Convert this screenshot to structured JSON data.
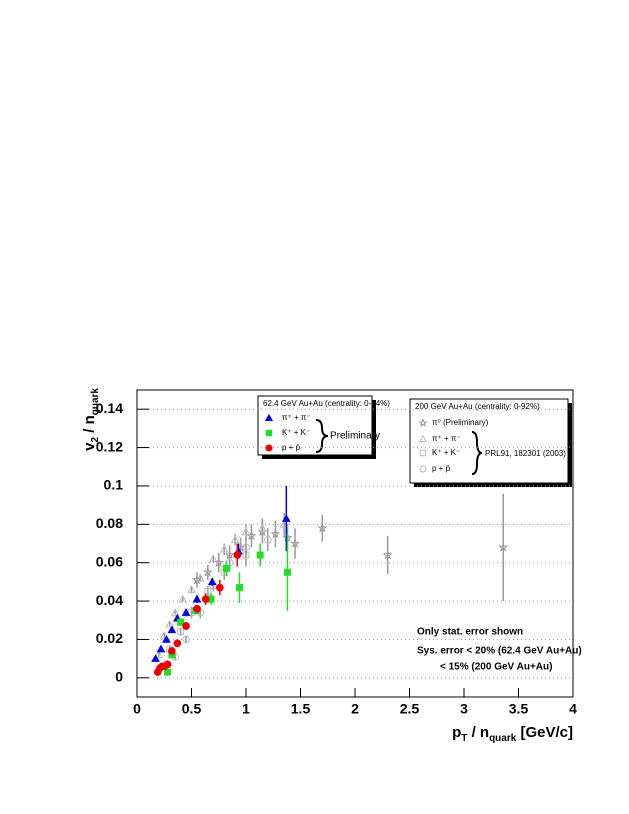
{
  "chart_data": {
    "type": "scatter",
    "xlim": [
      0,
      4
    ],
    "ylim": [
      -0.01,
      0.15
    ],
    "xticks": [
      0,
      0.5,
      1,
      1.5,
      2,
      2.5,
      3,
      3.5,
      4
    ],
    "yticks": [
      0,
      0.02,
      0.04,
      0.06,
      0.08,
      0.1,
      0.12,
      0.14
    ],
    "grid": true,
    "x_label": [
      "p",
      "T",
      " / n",
      "quark",
      " [GeV/c]"
    ],
    "y_label": [
      "v",
      "2",
      " / n",
      "quark"
    ],
    "annotations": [
      "Only stat. error shown",
      "Sys. error < 20% (62.4 GeV Au+Au)",
      "< 15% (200 GeV Au+Au)"
    ],
    "groups": [
      {
        "title": "62.4 GeV Au+Au (centrality: 0-84%)",
        "label": "Preliminary",
        "series": [
          {
            "name": "π⁺ + π⁻",
            "marker": "triangle",
            "filled": true,
            "color": "#0000ee",
            "x": [
              0.17,
              0.22,
              0.27,
              0.32,
              0.37,
              0.45,
              0.55,
              0.69,
              0.93,
              1.37
            ],
            "values": [
              0.01,
              0.015,
              0.02,
              0.025,
              0.031,
              0.034,
              0.041,
              0.05,
              0.066,
              0.083
            ],
            "errors": [
              0.001,
              0.001,
              0.001,
              0.001,
              0.001,
              0.002,
              0.002,
              0.002,
              0.004,
              0.017
            ]
          },
          {
            "name": "K⁺ + K⁻",
            "marker": "square",
            "filled": true,
            "color": "#22dd22",
            "x": [
              0.28,
              0.32,
              0.4,
              0.54,
              0.68,
              0.82,
              0.94,
              1.13,
              1.38
            ],
            "values": [
              0.003,
              0.012,
              0.029,
              0.035,
              0.041,
              0.057,
              0.047,
              0.064,
              0.055
            ],
            "errors": [
              0.002,
              0.002,
              0.002,
              0.002,
              0.003,
              0.004,
              0.008,
              0.006,
              0.02
            ]
          },
          {
            "name": "p + p̄",
            "marker": "circle",
            "filled": true,
            "color": "#ee0000",
            "x": [
              0.19,
              0.21,
              0.23,
              0.25,
              0.28,
              0.32,
              0.37,
              0.45,
              0.55,
              0.63,
              0.76,
              0.92
            ],
            "values": [
              0.003,
              0.005,
              0.006,
              0.006,
              0.007,
              0.014,
              0.018,
              0.027,
              0.036,
              0.041,
              0.047,
              0.064
            ],
            "errors": [
              0.001,
              0.001,
              0.001,
              0.001,
              0.001,
              0.001,
              0.002,
              0.002,
              0.002,
              0.003,
              0.004,
              0.006
            ]
          }
        ]
      },
      {
        "title": "200 GeV Au+Au (centrality: 0-92%)",
        "label": "PRL91, 182301 (2003)",
        "series": [
          {
            "name": "π⁰ (Preliminary)",
            "marker": "star",
            "filled": false,
            "color": "#999999",
            "x": [
              0.55,
              0.65,
              0.75,
              0.85,
              0.95,
              1.05,
              1.15,
              1.27,
              1.38,
              1.45,
              1.7,
              2.3,
              3.36
            ],
            "values": [
              0.051,
              0.055,
              0.06,
              0.064,
              0.068,
              0.074,
              0.076,
              0.075,
              0.073,
              0.07,
              0.078,
              0.064,
              0.068
            ],
            "errors": [
              0.004,
              0.004,
              0.005,
              0.005,
              0.005,
              0.006,
              0.006,
              0.007,
              0.007,
              0.008,
              0.007,
              0.01,
              0.028
            ]
          },
          {
            "name": "π⁺ + π⁻",
            "marker": "triangle",
            "filled": false,
            "color": "#bbbbbb",
            "x": [
              0.2,
              0.25,
              0.3,
              0.35,
              0.42,
              0.5,
              0.58,
              0.7,
              0.8,
              0.9,
              1.0,
              1.15,
              1.35
            ],
            "values": [
              0.012,
              0.022,
              0.028,
              0.034,
              0.041,
              0.046,
              0.052,
              0.062,
              0.067,
              0.072,
              0.076,
              0.078,
              0.08
            ],
            "errors": [
              0.001,
              0.001,
              0.001,
              0.001,
              0.001,
              0.002,
              0.002,
              0.002,
              0.003,
              0.003,
              0.004,
              0.005,
              0.006
            ]
          },
          {
            "name": "K⁺ + K⁻",
            "marker": "square",
            "filled": false,
            "color": "#bbbbbb",
            "x": [
              0.3,
              0.4,
              0.5,
              0.65,
              0.8,
              1.0
            ],
            "values": [
              0.015,
              0.024,
              0.034,
              0.045,
              0.055,
              0.064
            ],
            "errors": [
              0.002,
              0.002,
              0.003,
              0.003,
              0.004,
              0.006
            ]
          },
          {
            "name": "p + p̄",
            "marker": "circle",
            "filled": false,
            "color": "#bbbbbb",
            "x": [
              0.35,
              0.45,
              0.58,
              0.7,
              0.85,
              1.0,
              1.2
            ],
            "values": [
              0.011,
              0.02,
              0.034,
              0.048,
              0.06,
              0.068,
              0.072
            ],
            "errors": [
              0.002,
              0.002,
              0.003,
              0.003,
              0.004,
              0.005,
              0.006
            ]
          }
        ]
      }
    ]
  }
}
